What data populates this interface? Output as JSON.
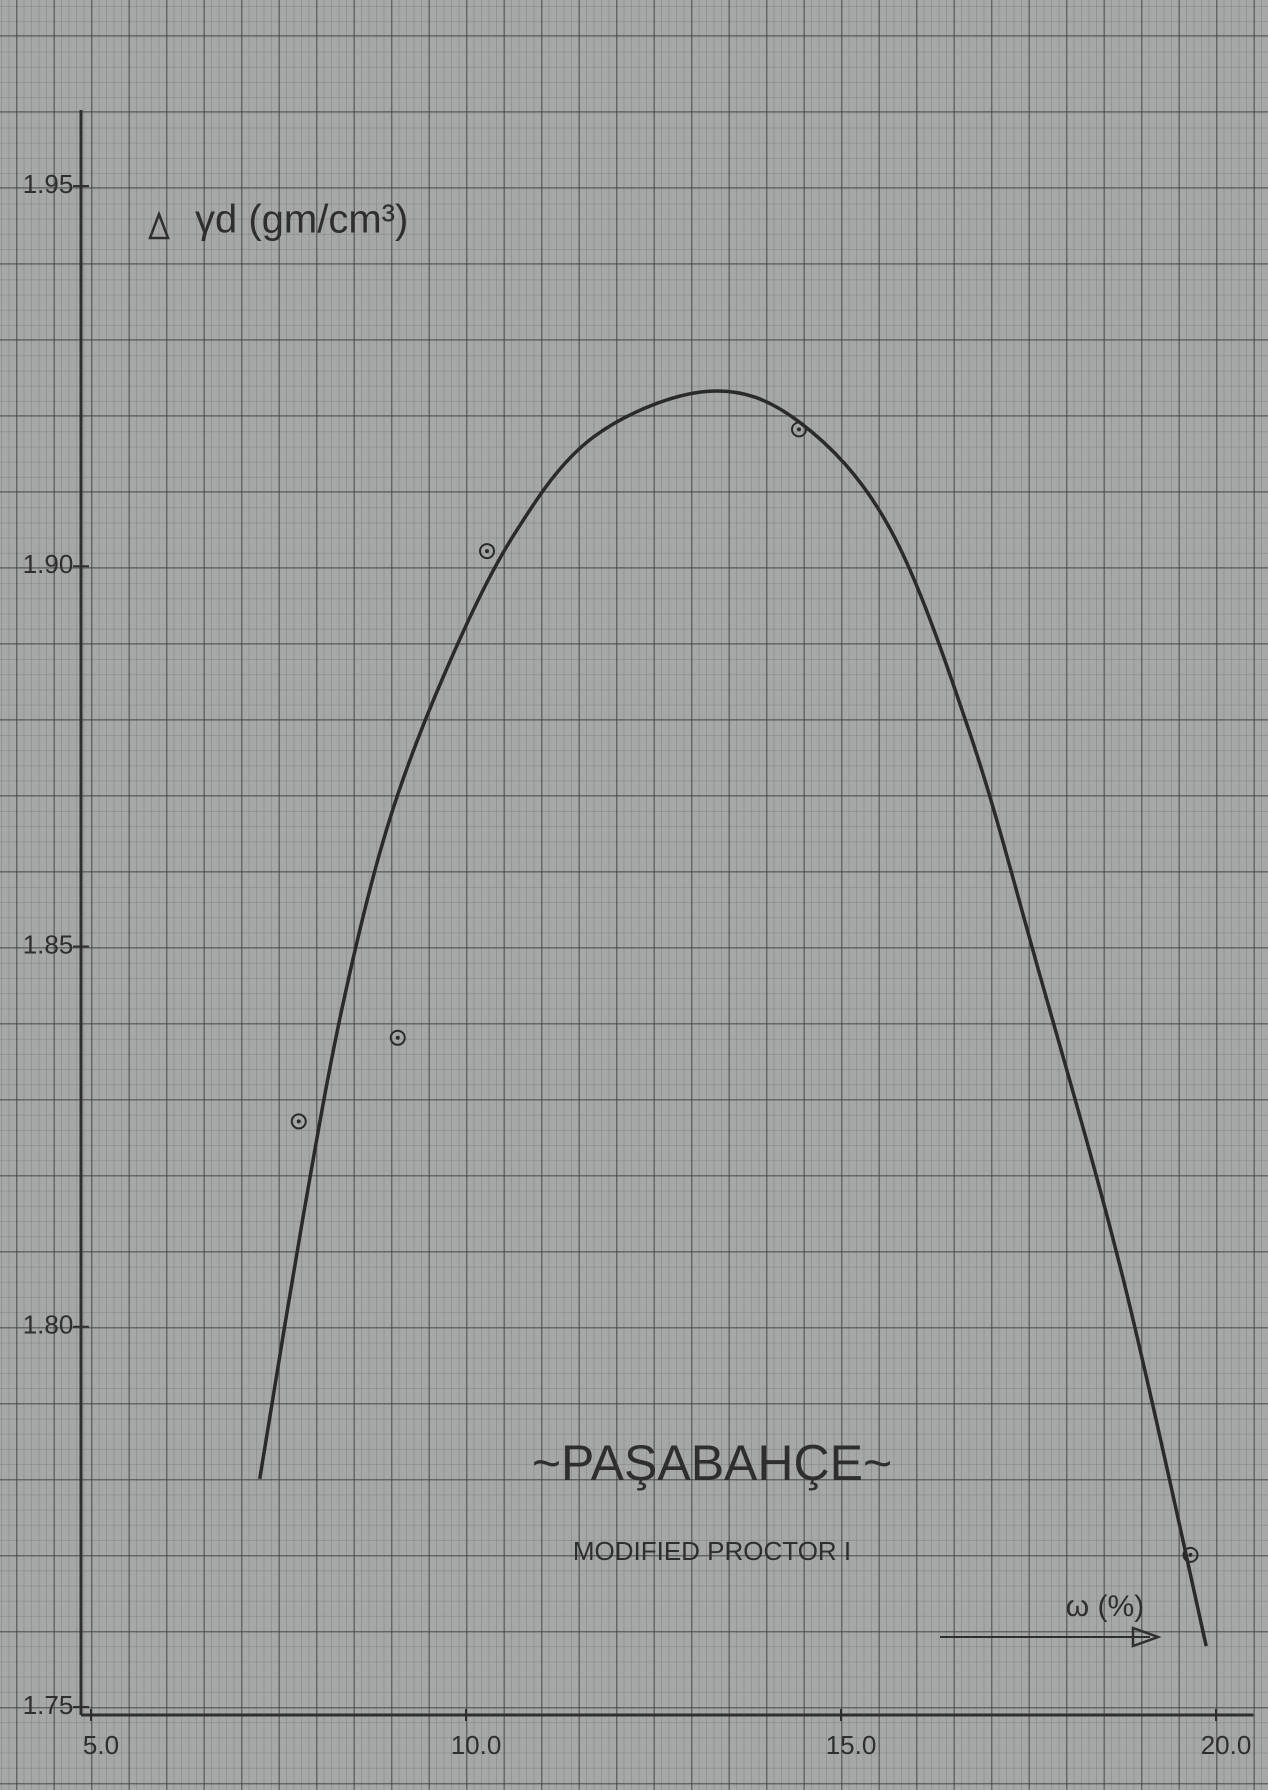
{
  "chart_data": {
    "type": "line",
    "title": "~PAŞABAHÇE~",
    "subtitle": "MODIFIED PROCTOR I",
    "ylabel": "γd (gm/cm³)",
    "xlabel": "ω (%)",
    "xlim": [
      5,
      20.5
    ],
    "ylim": [
      1.75,
      1.96
    ],
    "xticks": [
      {
        "value": 5,
        "label": "5.0"
      },
      {
        "value": 10,
        "label": "10.0"
      },
      {
        "value": 15,
        "label": "15.0"
      },
      {
        "value": 20,
        "label": "20.0"
      }
    ],
    "yticks": [
      1.75,
      {
        "value": 1.8,
        "label": "1.80"
      },
      1.85,
      {
        "value": 1.9,
        "label": "1.90"
      },
      1.95
    ],
    "color": "#2a2a2a",
    "series": [
      {
        "type": "line",
        "x": [
          7.25,
          7.82,
          8.35,
          8.96,
          9.72,
          10.63,
          11.7,
          13.22,
          14.44,
          15.65,
          16.72,
          17.63,
          18.77,
          19.87
        ],
        "values": [
          1.78,
          1.814,
          1.842,
          1.866,
          1.886,
          1.904,
          1.917,
          1.923,
          1.919,
          1.905,
          1.878,
          1.847,
          1.806,
          1.758
        ]
      },
      {
        "type": "scatter",
        "x": [
          7.77,
          9.09,
          10.28,
          14.44,
          19.66
        ],
        "values": [
          1.827,
          1.838,
          1.902,
          1.918,
          1.77
        ]
      }
    ]
  }
}
